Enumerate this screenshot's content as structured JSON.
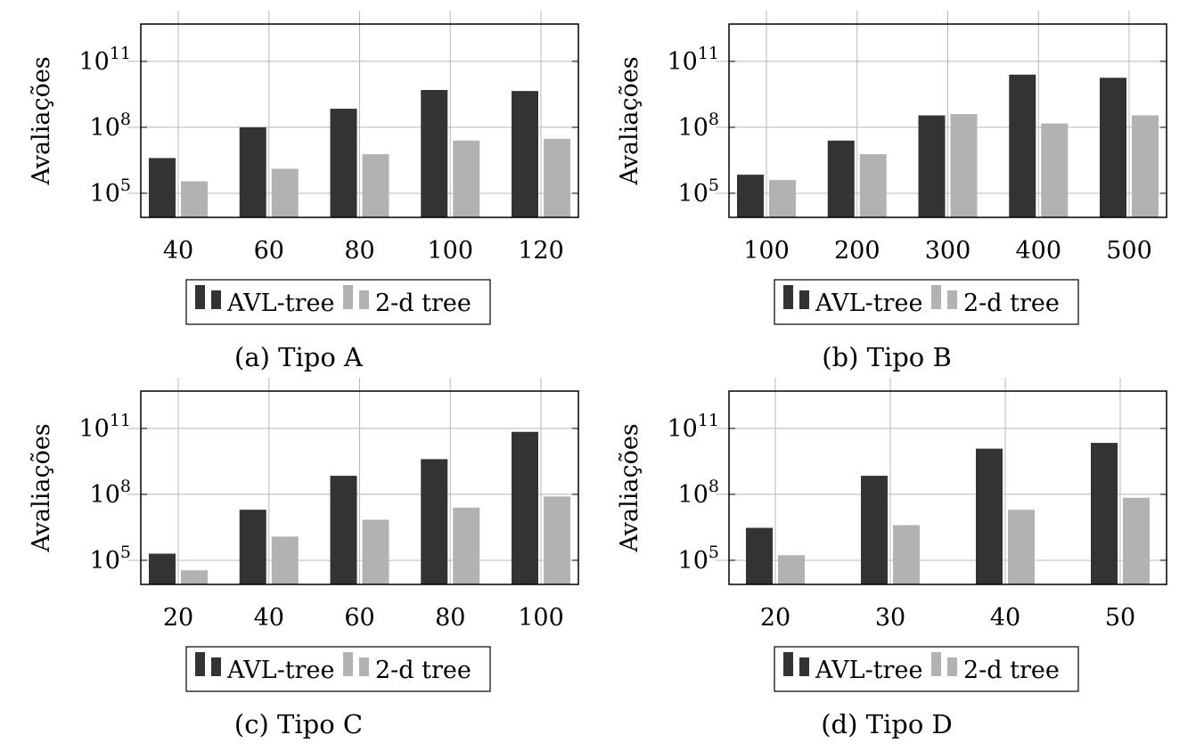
{
  "chart_data": [
    {
      "type": "bar",
      "caption_label": "(a)",
      "caption_text": "Tipo A",
      "ylabel": "Avaliações",
      "yscale": "log",
      "ylim": [
        8000,
        5000000000000
      ],
      "yticks": [
        {
          "value": 100000,
          "base": "10",
          "exp": "5"
        },
        {
          "value": 100000000,
          "base": "10",
          "exp": "8"
        },
        {
          "value": 100000000000,
          "base": "10",
          "exp": "11"
        }
      ],
      "categories": [
        "40",
        "60",
        "80",
        "100",
        "120"
      ],
      "series": [
        {
          "name": "AVL-tree",
          "color": "#333333",
          "values": [
            4000000,
            100000000,
            700000000,
            5000000000,
            4500000000
          ]
        },
        {
          "name": "2-d tree",
          "color": "#b2b2b2",
          "values": [
            350000,
            1300000,
            6000000,
            25000000,
            30000000
          ]
        }
      ],
      "grid": true,
      "legend_position": "bottom"
    },
    {
      "type": "bar",
      "caption_label": "(b)",
      "caption_text": "Tipo B",
      "ylabel": "Avaliações",
      "yscale": "log",
      "ylim": [
        8000,
        5000000000000
      ],
      "yticks": [
        {
          "value": 100000,
          "base": "10",
          "exp": "5"
        },
        {
          "value": 100000000,
          "base": "10",
          "exp": "8"
        },
        {
          "value": 100000000000,
          "base": "10",
          "exp": "11"
        }
      ],
      "categories": [
        "100",
        "200",
        "300",
        "400",
        "500"
      ],
      "series": [
        {
          "name": "AVL-tree",
          "color": "#333333",
          "values": [
            700000,
            25000000,
            350000000,
            25000000000,
            18000000000
          ]
        },
        {
          "name": "2-d tree",
          "color": "#b2b2b2",
          "values": [
            400000,
            6000000,
            400000000,
            150000000,
            350000000
          ]
        }
      ],
      "grid": true,
      "legend_position": "bottom"
    },
    {
      "type": "bar",
      "caption_label": "(c)",
      "caption_text": "Tipo C",
      "ylabel": "Avaliações",
      "yscale": "log",
      "ylim": [
        8000,
        5000000000000
      ],
      "yticks": [
        {
          "value": 100000,
          "base": "10",
          "exp": "5"
        },
        {
          "value": 100000000,
          "base": "10",
          "exp": "8"
        },
        {
          "value": 100000000000,
          "base": "10",
          "exp": "11"
        }
      ],
      "categories": [
        "20",
        "40",
        "60",
        "80",
        "100"
      ],
      "series": [
        {
          "name": "AVL-tree",
          "color": "#333333",
          "values": [
            200000,
            20000000,
            700000000,
            4000000000,
            70000000000
          ]
        },
        {
          "name": "2-d tree",
          "color": "#b2b2b2",
          "values": [
            35000,
            1200000,
            7000000,
            25000000,
            80000000
          ]
        }
      ],
      "grid": true,
      "legend_position": "bottom"
    },
    {
      "type": "bar",
      "caption_label": "(d)",
      "caption_text": "Tipo D",
      "ylabel": "Avaliações",
      "yscale": "log",
      "ylim": [
        8000,
        5000000000000
      ],
      "yticks": [
        {
          "value": 100000,
          "base": "10",
          "exp": "5"
        },
        {
          "value": 100000000,
          "base": "10",
          "exp": "8"
        },
        {
          "value": 100000000000,
          "base": "10",
          "exp": "11"
        }
      ],
      "categories": [
        "20",
        "30",
        "40",
        "50"
      ],
      "series": [
        {
          "name": "AVL-tree",
          "color": "#333333",
          "values": [
            3000000,
            700000000,
            12000000000,
            22000000000
          ]
        },
        {
          "name": "2-d tree",
          "color": "#b2b2b2",
          "values": [
            170000,
            4000000,
            20000000,
            70000000
          ]
        }
      ],
      "grid": true,
      "legend_position": "bottom"
    }
  ]
}
